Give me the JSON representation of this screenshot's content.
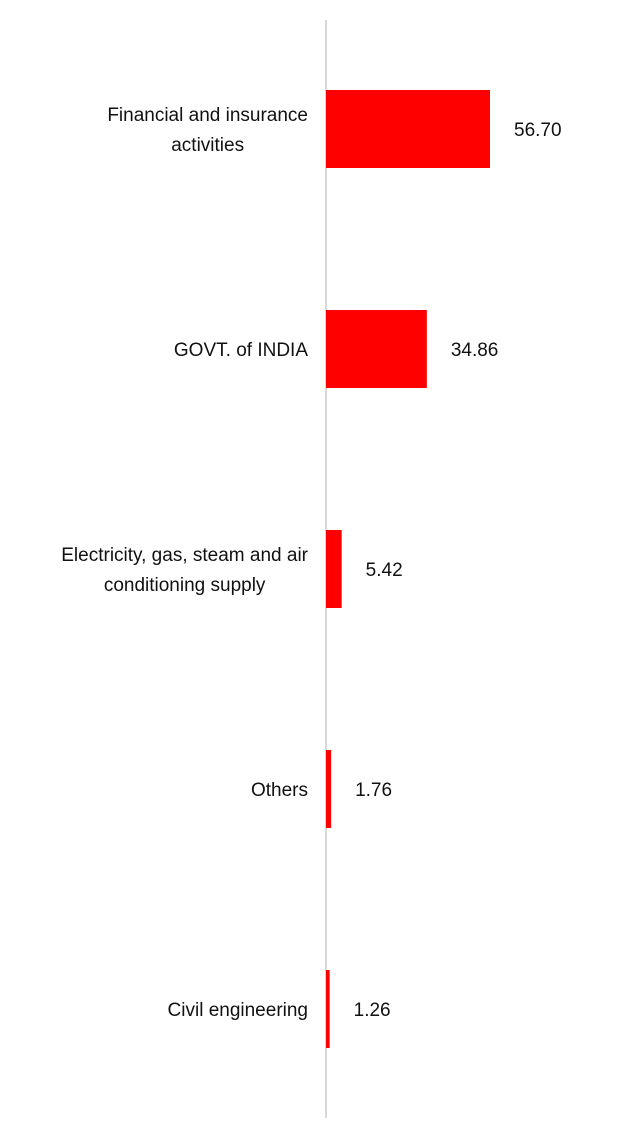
{
  "chart_data": {
    "type": "bar",
    "orientation": "horizontal",
    "categories": [
      "Financial and insurance activities",
      "GOVT. of INDIA",
      "Electricity, gas, steam and air conditioning supply",
      "Others",
      "Civil engineering"
    ],
    "category_lines": [
      [
        "Financial and insurance",
        "activities"
      ],
      [
        "GOVT. of INDIA"
      ],
      [
        "Electricity, gas, steam and air",
        "conditioning supply"
      ],
      [
        "Others"
      ],
      [
        "Civil engineering"
      ]
    ],
    "values": [
      56.7,
      34.86,
      5.42,
      1.76,
      1.26
    ],
    "value_labels": [
      "56.70",
      "34.86",
      "5.42",
      "1.76",
      "1.26"
    ],
    "xlim": [
      0,
      60
    ],
    "bar_color": "#ff0000",
    "axis_color": "#d9d9d9",
    "grid": false,
    "legend": "none"
  }
}
